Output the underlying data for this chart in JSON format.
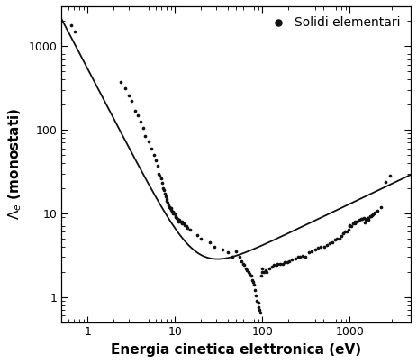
{
  "xlabel": "Energia cinetica elettronica (eV)",
  "ylabel": "$\\Lambda_e$ (monostati)",
  "xlim": [
    0.5,
    5000
  ],
  "ylim": [
    0.5,
    3000
  ],
  "legend_label": "Solidi elementari",
  "scatter_color": "#111111",
  "curve_color": "#111111",
  "curve_A": 538,
  "curve_B": 0.41,
  "scatter_data": [
    [
      0.65,
      1800
    ],
    [
      0.72,
      1500
    ],
    [
      2.4,
      370
    ],
    [
      2.7,
      310
    ],
    [
      3.0,
      260
    ],
    [
      3.2,
      220
    ],
    [
      3.5,
      170
    ],
    [
      3.8,
      150
    ],
    [
      4.0,
      125
    ],
    [
      4.3,
      105
    ],
    [
      4.6,
      85
    ],
    [
      5.0,
      72
    ],
    [
      5.4,
      60
    ],
    [
      5.8,
      50
    ],
    [
      6.0,
      43
    ],
    [
      6.3,
      37
    ],
    [
      6.5,
      30
    ],
    [
      6.7,
      28
    ],
    [
      7.0,
      26
    ],
    [
      7.1,
      23
    ],
    [
      7.3,
      20
    ],
    [
      7.5,
      19
    ],
    [
      7.6,
      17
    ],
    [
      7.8,
      16
    ],
    [
      8.0,
      15
    ],
    [
      8.1,
      14
    ],
    [
      8.3,
      13.5
    ],
    [
      8.5,
      12.5
    ],
    [
      8.6,
      12
    ],
    [
      8.9,
      11.5
    ],
    [
      9.0,
      11
    ],
    [
      9.1,
      11.5
    ],
    [
      9.3,
      10.5
    ],
    [
      9.5,
      10.5
    ],
    [
      9.6,
      10
    ],
    [
      9.8,
      10
    ],
    [
      10.0,
      10
    ],
    [
      10.1,
      9.3
    ],
    [
      10.3,
      9.0
    ],
    [
      10.5,
      8.8
    ],
    [
      10.6,
      8.5
    ],
    [
      10.9,
      8.4
    ],
    [
      11.0,
      8.0
    ],
    [
      11.1,
      8.3
    ],
    [
      11.5,
      8.0
    ],
    [
      12.0,
      7.6
    ],
    [
      12.1,
      7.9
    ],
    [
      12.5,
      7.5
    ],
    [
      13.0,
      7.2
    ],
    [
      13.5,
      7.0
    ],
    [
      14.0,
      6.7
    ],
    [
      15.0,
      6.4
    ],
    [
      18.0,
      5.5
    ],
    [
      20.0,
      5.0
    ],
    [
      25.0,
      4.5
    ],
    [
      28.0,
      4.0
    ],
    [
      35.0,
      3.7
    ],
    [
      40.0,
      3.4
    ],
    [
      45.0,
      3.0
    ],
    [
      50.0,
      3.5
    ],
    [
      55.0,
      3.0
    ],
    [
      58.0,
      2.7
    ],
    [
      60.0,
      2.5
    ],
    [
      62.0,
      2.4
    ],
    [
      65.0,
      2.2
    ],
    [
      67.0,
      2.1
    ],
    [
      70.0,
      2.0
    ],
    [
      72.0,
      1.9
    ],
    [
      74.0,
      1.8
    ],
    [
      76.0,
      1.6
    ],
    [
      78.0,
      1.5
    ],
    [
      80.0,
      1.4
    ],
    [
      82.0,
      1.2
    ],
    [
      85.0,
      1.05
    ],
    [
      87.0,
      0.9
    ],
    [
      90.0,
      0.85
    ],
    [
      90.0,
      0.75
    ],
    [
      92.0,
      0.7
    ],
    [
      95.0,
      0.65
    ],
    [
      97.0,
      1.8
    ],
    [
      100.0,
      2.0
    ],
    [
      100.0,
      2.2
    ],
    [
      105.0,
      2.0
    ],
    [
      110.0,
      2.1
    ],
    [
      112.0,
      2.0
    ],
    [
      120.0,
      2.2
    ],
    [
      128.0,
      2.3
    ],
    [
      135.0,
      2.4
    ],
    [
      145.0,
      2.4
    ],
    [
      150.0,
      2.5
    ],
    [
      160.0,
      2.5
    ],
    [
      170.0,
      2.5
    ],
    [
      180.0,
      2.6
    ],
    [
      195.0,
      2.6
    ],
    [
      205.0,
      2.7
    ],
    [
      220.0,
      2.8
    ],
    [
      240.0,
      2.9
    ],
    [
      255.0,
      3.0
    ],
    [
      270.0,
      3.0
    ],
    [
      290.0,
      3.1
    ],
    [
      310.0,
      3.0
    ],
    [
      340.0,
      3.4
    ],
    [
      370.0,
      3.5
    ],
    [
      400.0,
      3.7
    ],
    [
      430.0,
      3.9
    ],
    [
      470.0,
      4.0
    ],
    [
      510.0,
      4.0
    ],
    [
      550.0,
      4.2
    ],
    [
      590.0,
      4.4
    ],
    [
      640.0,
      4.5
    ],
    [
      680.0,
      4.8
    ],
    [
      720.0,
      5.0
    ],
    [
      760.0,
      5.0
    ],
    [
      800.0,
      5.3
    ],
    [
      840.0,
      5.8
    ],
    [
      880.0,
      6.0
    ],
    [
      920.0,
      6.0
    ],
    [
      960.0,
      6.4
    ],
    [
      1000.0,
      7.0
    ],
    [
      1000.0,
      7.2
    ],
    [
      1050.0,
      7.0
    ],
    [
      1100.0,
      7.5
    ],
    [
      1150.0,
      7.5
    ],
    [
      1150.0,
      8.0
    ],
    [
      1200.0,
      8.0
    ],
    [
      1250.0,
      8.2
    ],
    [
      1300.0,
      8.3
    ],
    [
      1350.0,
      8.5
    ],
    [
      1400.0,
      8.5
    ],
    [
      1450.0,
      8.8
    ],
    [
      1480.0,
      7.8
    ],
    [
      1520.0,
      8.3
    ],
    [
      1550.0,
      8.6
    ],
    [
      1600.0,
      8.8
    ],
    [
      1620.0,
      8.4
    ],
    [
      1650.0,
      8.8
    ],
    [
      1700.0,
      9.2
    ],
    [
      1750.0,
      9.3
    ],
    [
      1800.0,
      9.5
    ],
    [
      1850.0,
      9.8
    ],
    [
      1900.0,
      9.9
    ],
    [
      1950.0,
      10.2
    ],
    [
      2100.0,
      10.8
    ],
    [
      2300.0,
      12.0
    ],
    [
      2600.0,
      24.0
    ],
    [
      2900.0,
      28.0
    ]
  ]
}
